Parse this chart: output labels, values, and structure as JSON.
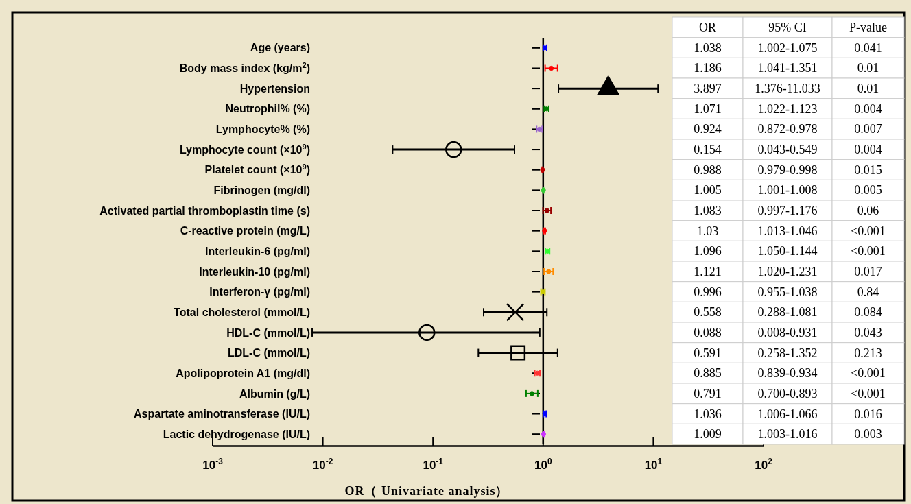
{
  "chart_data": {
    "type": "scatter",
    "orientation": "horizontal",
    "xlabel": "OR（ Univariate analysis）",
    "categories": [
      "Age (years)",
      "Body mass index (kg/m$^{2}$)",
      "Hypertension",
      "Neutrophil% (%)",
      "Lymphocyte% (%)",
      "Lymphocyte count (×10$^{9}$)",
      "Platelet count (×10$^{9}$)",
      "Fibrinogen (mg/dl)",
      "Activated partial thromboplastin time (s)",
      "C-reactive protein (mg/L)",
      "Interleukin-6 (pg/ml)",
      "Interleukin-10 (pg/ml)",
      "Interferon-γ (pg/ml)",
      "Total cholesterol (mmol/L)",
      "HDL-C (mmol/L)",
      "LDL-C (mmol/L)",
      "Apolipoprotein A1 (mg/dl)",
      "Albumin (g/L)",
      "Aspartate aminotransferase (IU/L)",
      "Lactic dehydrogenase (IU/L)"
    ],
    "log": "x",
    "xlim": [
      0.001,
      100
    ],
    "xticks": [
      {
        "value": 0.001,
        "label": "10$^{-3}$"
      },
      {
        "value": 0.01,
        "label": "10$^{-2}$"
      },
      {
        "value": 0.1,
        "label": "10$^{-1}$"
      },
      {
        "value": 1,
        "label": "10$^{0}$"
      },
      {
        "value": 10,
        "label": "10$^{1}$"
      },
      {
        "value": 100,
        "label": "10$^{2}$"
      }
    ],
    "grid": false,
    "ref_lines": [
      {
        "axis": "x",
        "value": 1,
        "color": "#000000"
      }
    ],
    "series": [
      {
        "marker": "circle",
        "colors": [
          "#0000ff",
          "#ff0000",
          null,
          "#008000",
          "#9966cc",
          "#000000",
          "#c00000",
          "#33cc33",
          "#990000",
          "#ff0000",
          "#33ff33",
          "#ff8c00",
          "#cccc00",
          null,
          "#000000",
          null,
          "#ff3333",
          "#008000",
          "#0000ff",
          "#cc33ff"
        ],
        "values": [
          1.038,
          1.186,
          null,
          1.071,
          0.924,
          0.154,
          0.988,
          1.005,
          1.083,
          1.03,
          1.096,
          1.121,
          0.996,
          null,
          0.088,
          null,
          0.885,
          0.791,
          1.036,
          1.009
        ],
        "errors": [
          [
            1.002,
            1.075
          ],
          [
            1.041,
            1.351
          ],
          null,
          [
            1.022,
            1.123
          ],
          [
            0.872,
            0.978
          ],
          [
            0.043,
            0.549
          ],
          [
            0.979,
            0.998
          ],
          [
            1.001,
            1.008
          ],
          [
            0.997,
            1.176
          ],
          [
            1.013,
            1.046
          ],
          [
            1.05,
            1.144
          ],
          [
            1.02,
            1.231
          ],
          [
            0.955,
            1.038
          ],
          null,
          [
            0.008,
            0.931
          ],
          null,
          [
            0.839,
            0.934
          ],
          [
            0.7,
            0.893
          ],
          [
            1.006,
            1.066
          ],
          [
            1.003,
            1.016
          ]
        ]
      },
      {
        "marker": "triangle",
        "color": "#000000",
        "values": [
          null,
          null,
          3.897,
          null,
          null,
          null,
          null,
          null,
          null,
          null,
          null,
          null,
          null,
          null,
          null,
          null,
          null,
          null,
          null,
          null
        ],
        "errors": [
          null,
          null,
          [
            1.376,
            11.033
          ],
          null,
          null,
          null,
          null,
          null,
          null,
          null,
          null,
          null,
          null,
          null,
          null,
          null,
          null,
          null,
          null,
          null
        ]
      },
      {
        "marker": "cross",
        "color": "#000000",
        "values": [
          null,
          null,
          null,
          null,
          null,
          null,
          null,
          null,
          null,
          null,
          null,
          null,
          null,
          0.558,
          null,
          null,
          null,
          null,
          null,
          null
        ],
        "errors": [
          null,
          null,
          null,
          null,
          null,
          null,
          null,
          null,
          null,
          null,
          null,
          null,
          null,
          [
            0.288,
            1.081
          ],
          null,
          null,
          null,
          null,
          null,
          null
        ]
      },
      {
        "marker": "square",
        "color": "#000000",
        "values": [
          null,
          null,
          null,
          null,
          null,
          null,
          null,
          null,
          null,
          null,
          null,
          null,
          null,
          null,
          null,
          0.591,
          null,
          null,
          null,
          null
        ],
        "errors": [
          null,
          null,
          null,
          null,
          null,
          null,
          null,
          null,
          null,
          null,
          null,
          null,
          null,
          null,
          null,
          [
            0.258,
            1.352
          ],
          null,
          null,
          null,
          null
        ]
      }
    ],
    "value_labels": [
      "1.038",
      "1.186",
      "3.897",
      "1.071",
      "0.924",
      "0.154",
      "0.988",
      "1.005",
      "1.083",
      "1.03",
      "1.096",
      "1.121",
      "0.996",
      "0.558",
      "0.088",
      "0.591",
      "0.885",
      "0.791",
      "1.036",
      "1.009"
    ],
    "annotations": [
      "OR",
      "95% CI",
      "P-value",
      "1.002-1.075",
      "1.041-1.351",
      "1.376-11.033",
      "1.022-1.123",
      "0.872-0.978",
      "0.043-0.549",
      "0.979-0.998",
      "1.001-1.008",
      "0.997-1.176",
      "1.013-1.046",
      "1.050-1.144",
      "1.020-1.231",
      "0.955-1.038",
      "0.288-1.081",
      "0.008-0.931",
      "0.258-1.352",
      "0.839-0.934",
      "0.700-0.893",
      "1.006-1.066",
      "1.003-1.016",
      "0.041",
      "0.01",
      "0.01",
      "0.004",
      "0.007",
      "0.004",
      "0.015",
      "0.005",
      "0.06",
      "<0.001",
      "<0.001",
      "0.017",
      "0.84",
      "0.084",
      "0.043",
      "0.213",
      "<0.001",
      "<0.001",
      "0.016",
      "0.003"
    ]
  }
}
